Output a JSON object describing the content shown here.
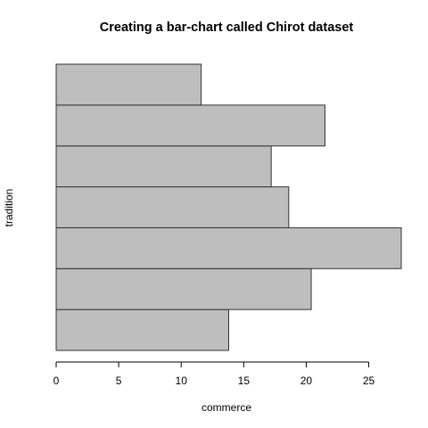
{
  "chart_data": {
    "type": "bar",
    "orientation": "horizontal",
    "title": "Creating a bar-chart called Chirot dataset",
    "xlabel": "commerce",
    "ylabel": "tradition",
    "values": [
      13.8,
      20.4,
      27.6,
      18.6,
      17.2,
      21.5,
      11.6
    ],
    "xlim": [
      0,
      27.6
    ],
    "x_ticks": [
      0,
      5,
      10,
      15,
      20,
      25
    ],
    "bar_color": "#bebebe",
    "bar_border_color": "#333333",
    "grid": false,
    "legend": "none"
  }
}
